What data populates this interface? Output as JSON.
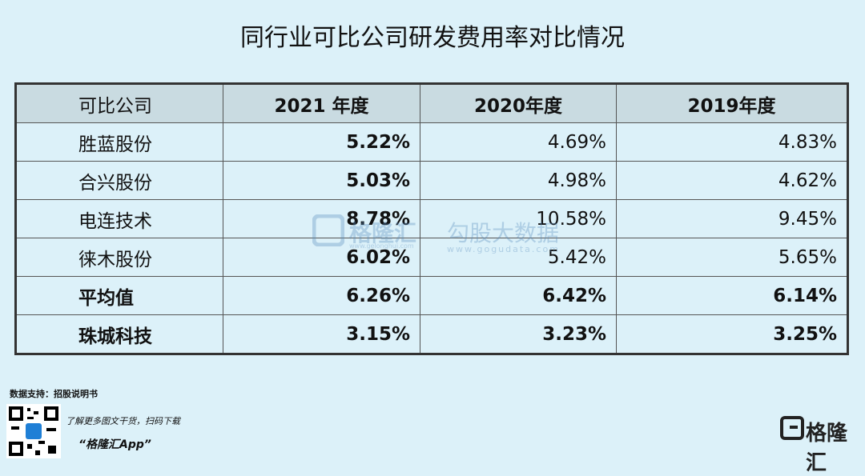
{
  "title": "同行业可比公司研发费用率对比情况",
  "table": {
    "header": [
      "可比公司",
      "2021 年度",
      "2020年度",
      "2019年度"
    ],
    "rows": [
      [
        "胜蓝股份",
        "5.22%",
        "4.69%",
        "4.83%"
      ],
      [
        "合兴股份",
        "5.03%",
        "4.98%",
        "4.62%"
      ],
      [
        "电连技术",
        "8.78%",
        "10.58%",
        "9.45%"
      ],
      [
        "徕木股份",
        "6.02%",
        "5.42%",
        "5.65%"
      ],
      [
        "平均值",
        "6.26%",
        "6.42%",
        "6.14%"
      ],
      [
        "珠城科技",
        "3.15%",
        "3.23%",
        "3.25%"
      ]
    ]
  },
  "source": "数据支持：招股说明书",
  "footer": {
    "promo": "了解更多图文干货，扫码下载",
    "app": "“格隆汇App”",
    "logo": "格隆汇"
  },
  "watermark": {
    "brand": "格隆汇",
    "brand_url": "www.gelonghui.com",
    "name": "勾股大数据",
    "url": "www.gogudata.com"
  }
}
